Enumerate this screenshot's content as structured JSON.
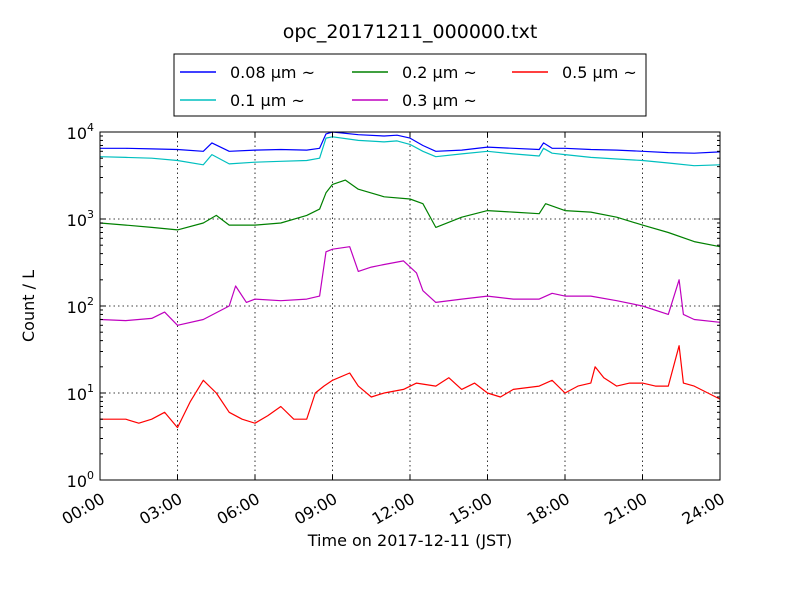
{
  "chart_data": {
    "type": "line",
    "title": "opc_20171211_000000.txt",
    "xlabel": "Time on 2017-12-11 (JST)",
    "ylabel": "Count / L",
    "xlim": [
      "00:00",
      "24:00"
    ],
    "ylim": [
      1,
      10000
    ],
    "y_scale": "log",
    "x_tick_labels": [
      "00:00",
      "03:00",
      "06:00",
      "09:00",
      "12:00",
      "15:00",
      "18:00",
      "21:00",
      "24:00"
    ],
    "y_tick_labels": [
      {
        "base": "10",
        "exp": "0"
      },
      {
        "base": "10",
        "exp": "1"
      },
      {
        "base": "10",
        "exp": "2"
      },
      {
        "base": "10",
        "exp": "3"
      },
      {
        "base": "10",
        "exp": "4"
      }
    ],
    "grid": true,
    "legend_position": "top-center",
    "series": [
      {
        "name": "0.08 μm ~",
        "color": "#0000ff",
        "x": [
          "00:00",
          "01:00",
          "02:00",
          "03:00",
          "04:00",
          "04:20",
          "05:00",
          "06:00",
          "07:00",
          "08:00",
          "08:30",
          "08:45",
          "09:00",
          "10:00",
          "11:00",
          "11:30",
          "12:00",
          "12:30",
          "13:00",
          "14:00",
          "15:00",
          "16:00",
          "17:00",
          "17:10",
          "17:30",
          "18:00",
          "19:00",
          "20:00",
          "21:00",
          "22:00",
          "23:00",
          "24:00"
        ],
        "values": [
          6500,
          6500,
          6400,
          6300,
          6000,
          7500,
          6000,
          6200,
          6300,
          6200,
          6500,
          9500,
          10000,
          9300,
          9000,
          9200,
          8500,
          7000,
          6000,
          6200,
          6700,
          6500,
          6300,
          7500,
          6500,
          6500,
          6300,
          6200,
          6000,
          5800,
          5700,
          5900
        ]
      },
      {
        "name": "0.1 μm ~",
        "color": "#00bfbf",
        "x": [
          "00:00",
          "01:00",
          "02:00",
          "03:00",
          "04:00",
          "04:20",
          "05:00",
          "06:00",
          "07:00",
          "08:00",
          "08:30",
          "08:45",
          "09:00",
          "10:00",
          "11:00",
          "11:30",
          "12:00",
          "12:30",
          "13:00",
          "14:00",
          "15:00",
          "16:00",
          "17:00",
          "17:10",
          "17:30",
          "18:00",
          "19:00",
          "20:00",
          "21:00",
          "22:00",
          "23:00",
          "24:00"
        ],
        "values": [
          5200,
          5100,
          5000,
          4700,
          4200,
          5500,
          4300,
          4500,
          4600,
          4700,
          5000,
          8500,
          8800,
          8000,
          7700,
          7900,
          7200,
          6000,
          5200,
          5600,
          6000,
          5600,
          5300,
          6500,
          5700,
          5500,
          5100,
          4900,
          4700,
          4400,
          4100,
          4200
        ]
      },
      {
        "name": "0.2 μm ~",
        "color": "#008000",
        "x": [
          "00:00",
          "01:00",
          "02:00",
          "03:00",
          "04:00",
          "04:30",
          "05:00",
          "06:00",
          "07:00",
          "08:00",
          "08:30",
          "08:45",
          "09:00",
          "09:30",
          "10:00",
          "11:00",
          "12:00",
          "12:30",
          "13:00",
          "14:00",
          "15:00",
          "16:00",
          "17:00",
          "17:15",
          "18:00",
          "19:00",
          "20:00",
          "21:00",
          "22:00",
          "23:00",
          "24:00"
        ],
        "values": [
          900,
          850,
          800,
          750,
          900,
          1100,
          850,
          850,
          900,
          1100,
          1300,
          2000,
          2500,
          2800,
          2200,
          1800,
          1700,
          1500,
          800,
          1050,
          1250,
          1200,
          1150,
          1500,
          1250,
          1200,
          1050,
          850,
          700,
          550,
          480
        ]
      },
      {
        "name": "0.3 μm ~",
        "color": "#bf00bf",
        "x": [
          "00:00",
          "01:00",
          "02:00",
          "02:30",
          "03:00",
          "04:00",
          "05:00",
          "05:15",
          "05:40",
          "06:00",
          "07:00",
          "08:00",
          "08:30",
          "08:45",
          "09:00",
          "09:40",
          "10:00",
          "10:30",
          "11:00",
          "11:45",
          "12:15",
          "12:30",
          "13:00",
          "14:00",
          "15:00",
          "16:00",
          "17:00",
          "17:30",
          "18:00",
          "19:00",
          "20:00",
          "21:00",
          "22:00",
          "22:25",
          "22:35",
          "23:00",
          "24:00"
        ],
        "values": [
          70,
          68,
          72,
          85,
          60,
          70,
          100,
          170,
          110,
          120,
          115,
          120,
          130,
          420,
          450,
          480,
          250,
          280,
          300,
          330,
          240,
          150,
          110,
          120,
          130,
          120,
          120,
          140,
          130,
          130,
          115,
          100,
          80,
          200,
          80,
          70,
          65
        ]
      },
      {
        "name": "0.5 μm ~",
        "color": "#ff0000",
        "x": [
          "00:00",
          "01:00",
          "01:30",
          "02:00",
          "02:30",
          "03:00",
          "03:30",
          "04:00",
          "04:30",
          "05:00",
          "05:30",
          "06:00",
          "06:30",
          "07:00",
          "07:30",
          "08:00",
          "08:20",
          "08:40",
          "09:00",
          "09:40",
          "10:00",
          "10:30",
          "11:00",
          "11:45",
          "12:15",
          "13:00",
          "13:30",
          "14:00",
          "14:30",
          "15:00",
          "15:30",
          "16:00",
          "17:00",
          "17:30",
          "18:00",
          "18:30",
          "19:00",
          "19:10",
          "19:30",
          "20:00",
          "20:30",
          "21:00",
          "21:30",
          "22:00",
          "22:25",
          "22:35",
          "23:00",
          "24:00"
        ],
        "values": [
          5,
          5,
          4.5,
          5,
          6,
          4,
          8,
          14,
          10,
          6,
          5,
          4.5,
          5.5,
          7,
          5,
          5,
          10,
          12,
          14,
          17,
          12,
          9,
          10,
          11,
          13,
          12,
          15,
          11,
          13,
          10,
          9,
          11,
          12,
          14,
          10,
          12,
          13,
          20,
          15,
          12,
          13,
          13,
          12,
          12,
          35,
          13,
          12,
          8.5
        ]
      }
    ]
  }
}
